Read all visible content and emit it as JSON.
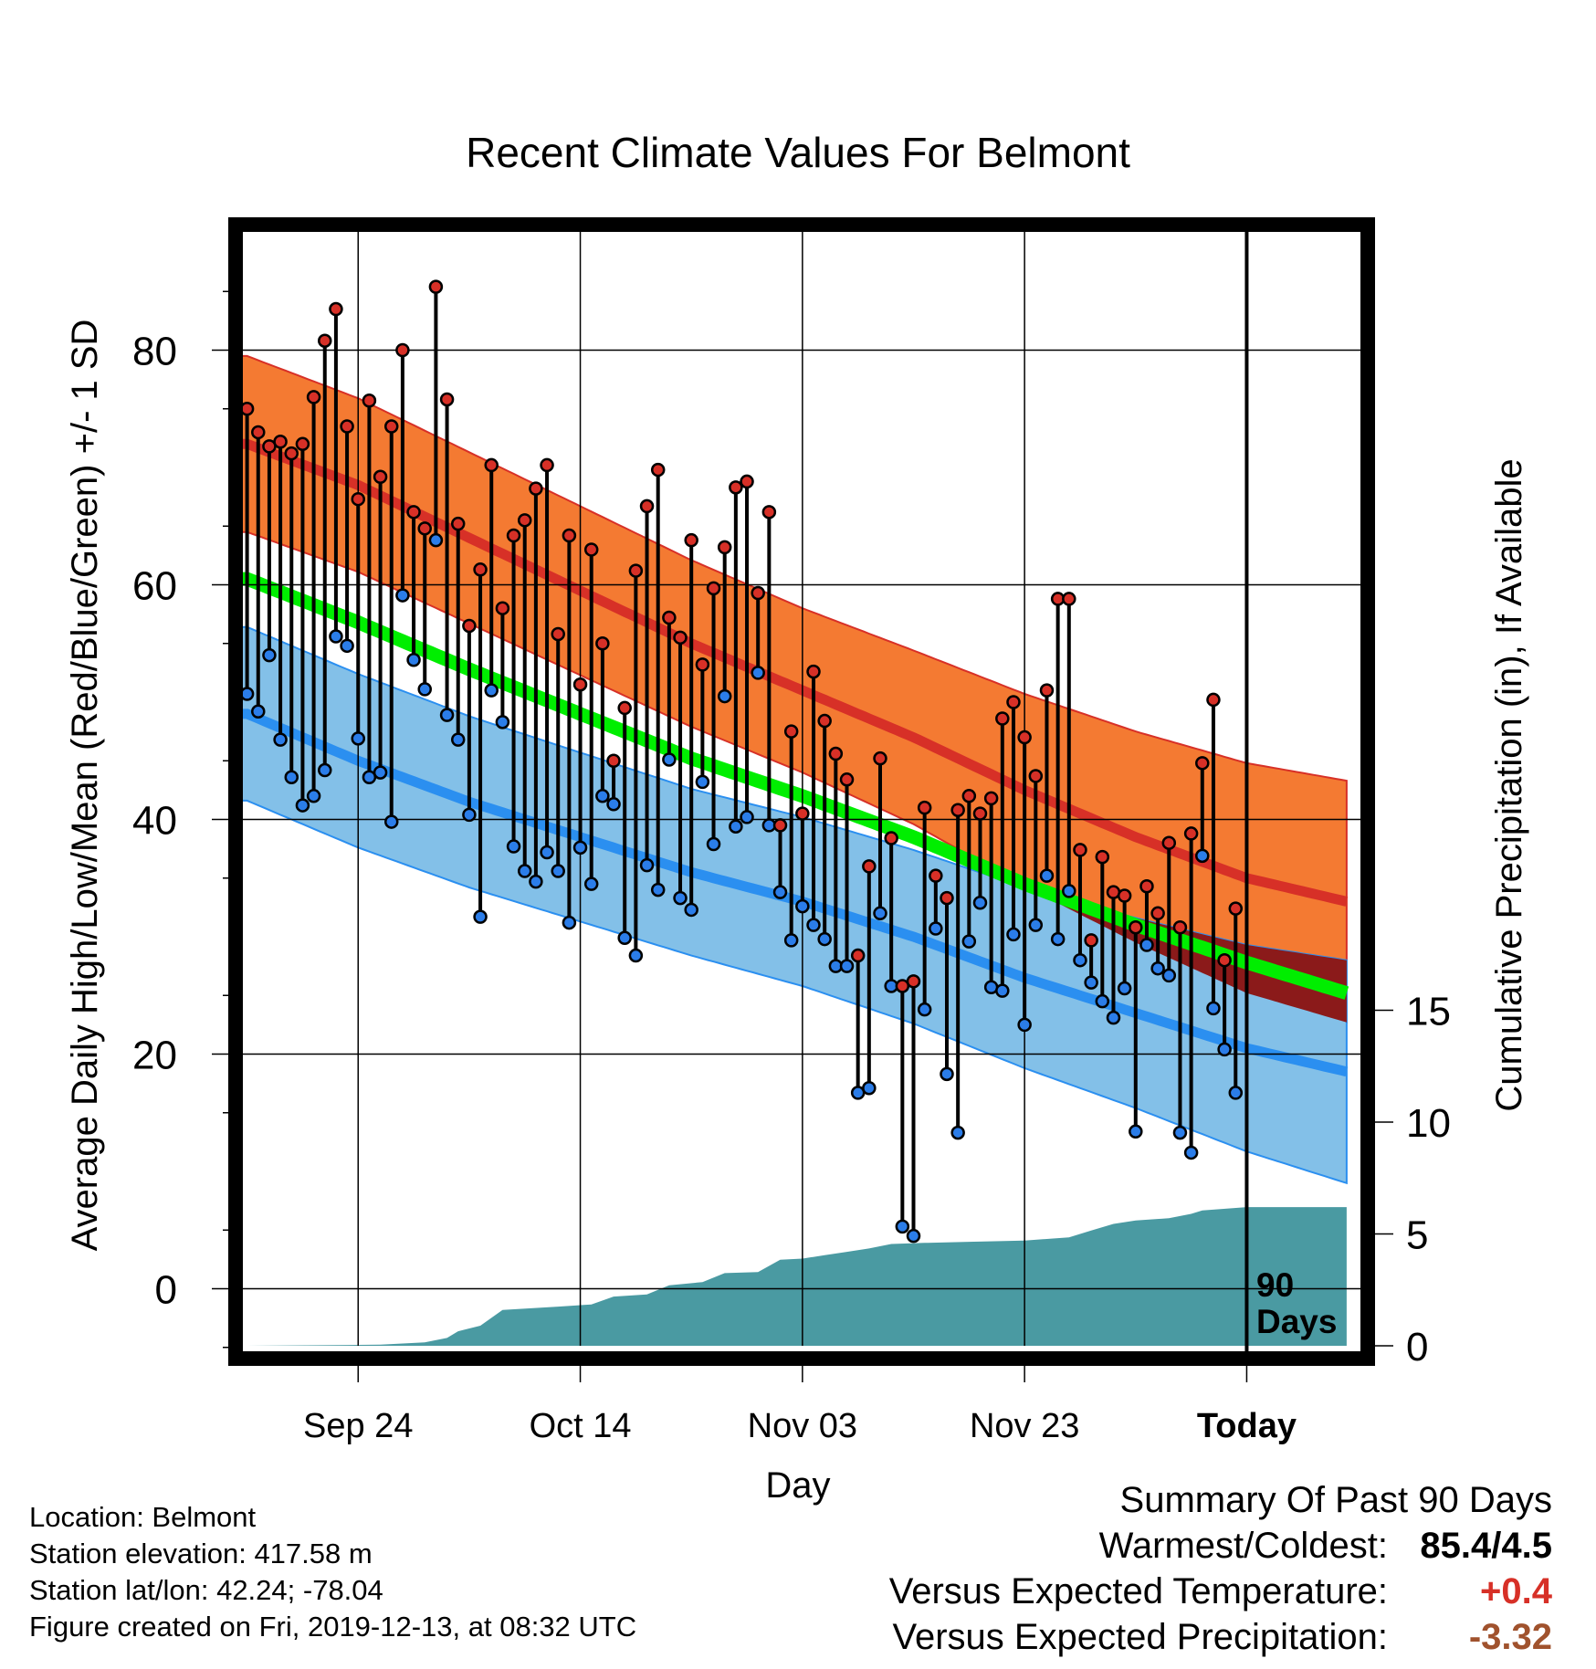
{
  "chart_data": {
    "type": "line",
    "title": "Recent Climate Values For Belmont",
    "xlabel": "Day",
    "ylabel": "Average Daily High/Low/Mean (Red/Blue/Green) +/- 1 SD",
    "y2label": "Cumulative Precipitation (in), If Available",
    "ylim": [
      -5,
      90
    ],
    "y_ticks": [
      0,
      20,
      40,
      60,
      80
    ],
    "y2lim": [
      0,
      30
    ],
    "y2_ticks": [
      0,
      5,
      10,
      15
    ],
    "xlim": [
      -0.5,
      90
    ],
    "x_ticks": [
      {
        "day": 10,
        "label": "Sep 24"
      },
      {
        "day": 30,
        "label": "Oct 14"
      },
      {
        "day": 50,
        "label": "Nov 03"
      },
      {
        "day": 70,
        "label": "Nov 23"
      },
      {
        "day": 90,
        "label": "Today"
      }
    ],
    "today_marker": "90\nDays",
    "grid": true,
    "colors": {
      "high_band": "#f47a32",
      "high_mean": "#d73027",
      "low_band": "#83c0e8",
      "low_mean": "#2b8ff0",
      "mean_line": "#00ee00",
      "overlap": "#8b1a1a",
      "precip": "#4a9aa2",
      "high_dot": "#d73027",
      "low_dot": "#2b7de9"
    },
    "normals": {
      "days": [
        0,
        10,
        20,
        30,
        40,
        50,
        60,
        70,
        80,
        90,
        99
      ],
      "high_mean": [
        72,
        68.5,
        64,
        59.5,
        55,
        51,
        47,
        42.5,
        38.5,
        35,
        33
      ],
      "high_sd": [
        7.5,
        7.4,
        7.3,
        7.2,
        7.1,
        7,
        7.4,
        8.2,
        9,
        9.8,
        10.3
      ],
      "low_mean": [
        49,
        45,
        41.5,
        38.5,
        35.5,
        33,
        30,
        26.5,
        23.5,
        20.5,
        18.5
      ],
      "low_sd": [
        7.4,
        7.4,
        7.3,
        7.2,
        7.1,
        7.2,
        7.4,
        7.7,
        8.1,
        8.8,
        9.5
      ],
      "mean": [
        60.5,
        56.8,
        52.8,
        49,
        45.2,
        42,
        38.5,
        34.5,
        31,
        27.8,
        25.2
      ]
    },
    "highs": [
      75,
      73,
      71.8,
      72.2,
      71.2,
      72,
      76,
      80.8,
      83.5,
      73.5,
      67.3,
      75.7,
      69.2,
      73.5,
      80,
      66.2,
      64.8,
      85.4,
      75.8,
      65.2,
      56.5,
      61.3,
      70.2,
      58,
      64.2,
      65.5,
      68.2,
      70.2,
      55.8,
      64.2,
      51.5,
      63,
      55,
      45,
      49.5,
      61.2,
      66.7,
      69.8,
      57.2,
      55.5,
      63.8,
      53.2,
      59.7,
      63.2,
      68.3,
      68.8,
      59.3,
      66.2,
      39.5,
      47.5,
      40.5,
      52.6,
      48.4,
      45.6,
      43.4,
      28.4,
      36,
      45.2,
      38.4,
      25.8,
      26.2,
      41,
      35.2,
      33.3,
      40.8,
      42,
      40.5,
      41.8,
      48.6,
      50,
      47,
      43.7,
      51,
      58.8,
      58.8,
      37.4,
      29.7,
      36.8,
      33.8,
      33.5,
      30.8,
      34.3,
      32,
      38,
      30.8,
      38.8,
      44.8,
      50.2,
      28,
      32.4
    ],
    "lows": [
      50.7,
      49.2,
      54,
      46.8,
      43.6,
      41.2,
      42,
      44.2,
      55.6,
      54.8,
      46.9,
      43.6,
      44,
      39.8,
      59.1,
      53.6,
      51.1,
      63.8,
      48.9,
      46.8,
      40.4,
      31.7,
      51,
      48.3,
      37.7,
      35.6,
      34.7,
      37.2,
      35.6,
      31.2,
      37.6,
      34.5,
      42,
      41.3,
      29.9,
      28.4,
      36.1,
      34,
      45.1,
      33.3,
      32.3,
      43.2,
      37.9,
      50.5,
      39.4,
      40.2,
      52.5,
      39.5,
      33.8,
      29.7,
      32.6,
      31,
      29.8,
      27.5,
      27.5,
      16.7,
      17.1,
      32,
      25.8,
      5.3,
      4.5,
      23.8,
      30.7,
      18.3,
      13.3,
      29.6,
      32.9,
      25.7,
      25.4,
      30.2,
      22.5,
      31,
      35.2,
      29.8,
      33.9,
      28,
      26.1,
      24.5,
      23.1,
      25.6,
      13.4,
      29.3,
      27.3,
      26.7,
      13.3,
      11.6,
      36.9,
      23.9,
      20.4,
      16.7
    ],
    "precip_cumulative": {
      "days": [
        0,
        12,
        16,
        18,
        19,
        21,
        23,
        28,
        31,
        33,
        36,
        38,
        41,
        43,
        46,
        48,
        50,
        52,
        54,
        56,
        58,
        61,
        65,
        70,
        74,
        76,
        78,
        80,
        83,
        85,
        86,
        90,
        99
      ],
      "values": [
        0,
        0.05,
        0.15,
        0.35,
        0.65,
        0.9,
        1.6,
        1.75,
        1.85,
        2.2,
        2.3,
        2.7,
        2.85,
        3.25,
        3.3,
        3.85,
        3.9,
        4.05,
        4.2,
        4.35,
        4.55,
        4.6,
        4.65,
        4.7,
        4.85,
        5.15,
        5.45,
        5.6,
        5.7,
        5.9,
        6.05,
        6.2,
        6.2
      ]
    }
  },
  "info": {
    "location": "Location: Belmont",
    "elevation": "Station elevation: 417.58 m",
    "latlon": "Station lat/lon: 42.24; -78.04",
    "created": "Figure created on Fri, 2019-12-13, at 08:32 UTC"
  },
  "summary": {
    "title": "Summary Of Past 90 Days",
    "warmest_label": "Warmest/Coldest:",
    "warmest_value": "85.4/4.5",
    "temp_label": "Versus Expected Temperature:",
    "temp_value": "+0.4",
    "temp_color": "#d73027",
    "precip_label": "Versus Expected Precipitation:",
    "precip_value": "-3.32",
    "precip_color": "#a0522d"
  }
}
